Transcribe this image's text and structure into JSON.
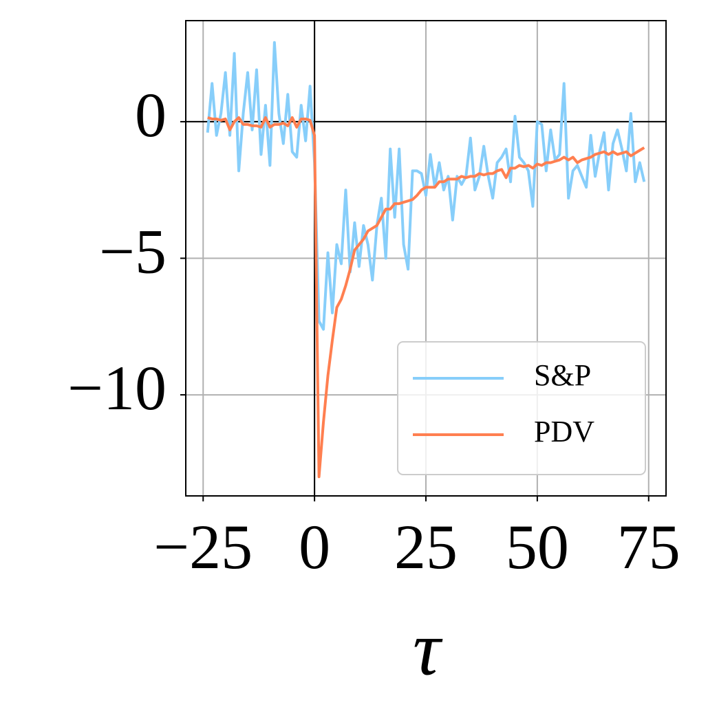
{
  "chart_data": {
    "type": "line",
    "xlabel": "τ",
    "x": [
      -24,
      -23,
      -22,
      -21,
      -20,
      -19,
      -18,
      -17,
      -16,
      -15,
      -14,
      -13,
      -12,
      -11,
      -10,
      -9,
      -8,
      -7,
      -6,
      -5,
      -4,
      -3,
      -2,
      -1,
      0,
      1,
      2,
      3,
      4,
      5,
      6,
      7,
      8,
      9,
      10,
      11,
      12,
      13,
      14,
      15,
      16,
      17,
      18,
      19,
      20,
      21,
      22,
      23,
      24,
      25,
      26,
      27,
      28,
      29,
      30,
      31,
      32,
      33,
      34,
      35,
      36,
      37,
      38,
      39,
      40,
      41,
      42,
      43,
      44,
      45,
      46,
      47,
      48,
      49,
      50,
      51,
      52,
      53,
      54,
      55,
      56,
      57,
      58,
      59,
      60,
      61,
      62,
      63,
      64,
      65,
      66,
      67,
      68,
      69,
      70,
      71,
      72,
      73,
      74
    ],
    "series": [
      {
        "name": "S&P",
        "color": "#87cefa",
        "values": [
          -0.4,
          1.4,
          -0.5,
          0.3,
          1.8,
          -0.5,
          2.5,
          -1.8,
          0.3,
          1.8,
          -0.3,
          1.9,
          -1.2,
          0.6,
          -1.6,
          2.9,
          0.3,
          -0.8,
          1.0,
          -1.1,
          -1.3,
          0.6,
          -0.7,
          1.3,
          -1.5,
          -7.3,
          -7.6,
          -4.8,
          -7.0,
          -4.5,
          -5.2,
          -2.5,
          -5.5,
          -3.7,
          -5.3,
          -3.8,
          -4.5,
          -5.8,
          -3.8,
          -2.8,
          -5.0,
          -1.0,
          -3.5,
          -1.0,
          -4.5,
          -5.4,
          -1.8,
          -1.8,
          -1.9,
          -2.7,
          -1.2,
          -2.4,
          -1.5,
          -2.5,
          -2.0,
          -3.6,
          -2.0,
          -2.3,
          -2.0,
          -0.6,
          -2.5,
          -2.0,
          -0.9,
          -2.0,
          -2.8,
          -1.5,
          -1.3,
          -1.0,
          -2.2,
          0.2,
          -1.3,
          -1.5,
          -1.8,
          -3.1,
          0.0,
          -0.1,
          -1.8,
          -0.3,
          -1.4,
          -1.2,
          1.4,
          -2.8,
          -1.8,
          -1.6,
          -2.0,
          -2.4,
          -0.5,
          -2.0,
          -1.1,
          -0.4,
          -2.5,
          -0.8,
          -0.3,
          -1.0,
          -1.8,
          0.3,
          -2.2,
          -1.5,
          -2.2
        ]
      },
      {
        "name": "PDV",
        "color": "#ff7f50",
        "values": [
          0.15,
          0.1,
          0.1,
          0.05,
          0.1,
          -0.3,
          0.0,
          0.15,
          -0.1,
          -0.1,
          -0.15,
          -0.15,
          -0.2,
          0.15,
          -0.2,
          -0.1,
          -0.1,
          -0.05,
          -0.15,
          0.15,
          -0.2,
          0.1,
          0.1,
          0.05,
          -0.5,
          -13.0,
          -11.0,
          -9.3,
          -8.0,
          -6.8,
          -6.5,
          -6.0,
          -5.4,
          -4.7,
          -4.5,
          -4.3,
          -4.0,
          -3.9,
          -3.8,
          -3.5,
          -3.2,
          -3.2,
          -3.0,
          -3.0,
          -2.95,
          -2.9,
          -2.85,
          -2.7,
          -2.5,
          -2.4,
          -2.4,
          -2.4,
          -2.2,
          -2.2,
          -2.1,
          -2.1,
          -2.1,
          -2.0,
          -2.05,
          -2.0,
          -2.0,
          -1.9,
          -1.95,
          -1.9,
          -1.9,
          -1.8,
          -1.75,
          -2.05,
          -1.7,
          -1.7,
          -1.6,
          -1.65,
          -1.6,
          -1.7,
          -1.55,
          -1.6,
          -1.5,
          -1.5,
          -1.45,
          -1.4,
          -1.3,
          -1.4,
          -1.3,
          -1.5,
          -1.4,
          -1.35,
          -1.3,
          -1.2,
          -1.15,
          -1.1,
          -1.2,
          -1.1,
          -1.2,
          -1.15,
          -1.1,
          -1.25,
          -1.15,
          -1.05,
          -0.95
        ]
      }
    ],
    "xlim": [
      -28.9,
      78.9
    ],
    "ylim": [
      -13.7,
      3.7
    ],
    "xticks": [
      {
        "value": -25,
        "label": "−25"
      },
      0,
      25,
      50,
      75
    ],
    "yticks": [
      {
        "value": -10,
        "label": "−10"
      },
      {
        "value": -5,
        "label": "−5"
      },
      0
    ],
    "reference_lines": {
      "x": 0,
      "y": 0
    },
    "grid": true,
    "legend": "lower right"
  }
}
